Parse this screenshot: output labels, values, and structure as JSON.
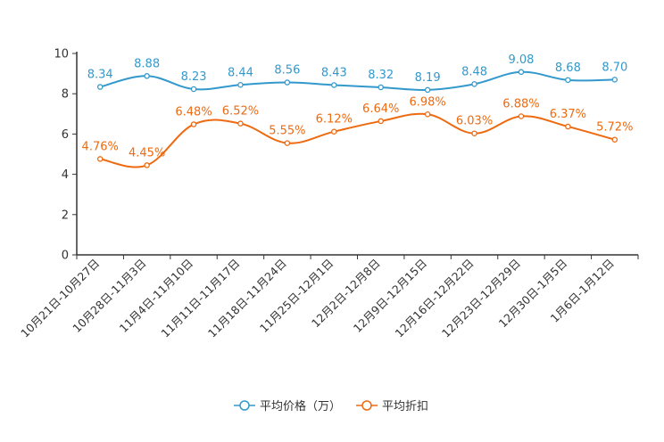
{
  "chart_data": {
    "type": "line",
    "categories": [
      "10月21日-10月27日",
      "10月28日-11月3日",
      "11月4日-11月10日",
      "11月11日-11月17日",
      "11月18日-11月24日",
      "11月25日-12月1日",
      "12月2日-12月8日",
      "12月9日-12月15日",
      "12月16日-12月22日",
      "12月23日-12月29日",
      "12月30日-1月5日",
      "1月6日-1月12日"
    ],
    "series": [
      {
        "name": "平均价格（万）",
        "color": "#3399cc",
        "values": [
          8.34,
          8.88,
          8.23,
          8.44,
          8.56,
          8.43,
          8.32,
          8.19,
          8.48,
          9.08,
          8.68,
          8.7
        ],
        "labels": [
          "8.34",
          "8.88",
          "8.23",
          "8.44",
          "8.56",
          "8.43",
          "8.32",
          "8.19",
          "8.48",
          "9.08",
          "8.68",
          "8.70"
        ]
      },
      {
        "name": "平均折扣",
        "color": "#ee6a10",
        "values": [
          4.76,
          4.45,
          6.48,
          6.52,
          5.55,
          6.12,
          6.64,
          6.98,
          6.03,
          6.88,
          6.37,
          5.72
        ],
        "labels": [
          "4.76%",
          "4.45%",
          "6.48%",
          "6.52%",
          "5.55%",
          "6.12%",
          "6.64%",
          "6.98%",
          "6.03%",
          "6.88%",
          "6.37%",
          "5.72%"
        ]
      }
    ],
    "y_ticks": [
      "0",
      "2",
      "4",
      "6",
      "8",
      "10"
    ],
    "ylim": [
      0,
      10
    ],
    "legend_position": "bottom-center"
  }
}
